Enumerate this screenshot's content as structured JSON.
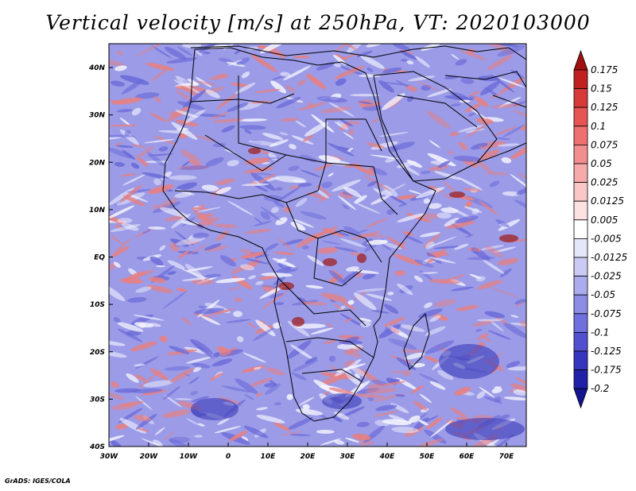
{
  "title": "Vertical velocity [m/s] at 250hPa, VT: 2020103000",
  "credit": "GrADS: IGES/COLA",
  "axes": {
    "lat_labels": [
      "40N",
      "30N",
      "20N",
      "10N",
      "EQ",
      "10S",
      "20S",
      "30S",
      "40S"
    ],
    "lon_labels": [
      "30W",
      "20W",
      "10W",
      "0",
      "10E",
      "20E",
      "30E",
      "40E",
      "50E",
      "60E",
      "70E"
    ]
  },
  "colorbar": {
    "labels": [
      "0.175",
      "0.15",
      "0.125",
      "0.1",
      "0.075",
      "0.05",
      "0.025",
      "0.0125",
      "0.005",
      "-0.005",
      "-0.0125",
      "-0.025",
      "-0.05",
      "-0.075",
      "-0.1",
      "-0.125",
      "-0.175",
      "-0.2"
    ],
    "colors": [
      "#a01010",
      "#c02020",
      "#d83a3a",
      "#e65454",
      "#ee7070",
      "#f28e8e",
      "#f6aaaa",
      "#fac6c6",
      "#fde2e2",
      "#ffffff",
      "#e6e6fb",
      "#cacaf5",
      "#ababee",
      "#8d8de6",
      "#6f6fdd",
      "#5151d0",
      "#3535c0",
      "#2020a8",
      "#141490"
    ]
  },
  "map_colors": {
    "background": "#9b9be8",
    "red": "#e88080",
    "blue": "#6a6ad8",
    "white": "#f4f4ff",
    "dark_blue": "#3a3ab8",
    "dark_red": "#a02020"
  }
}
